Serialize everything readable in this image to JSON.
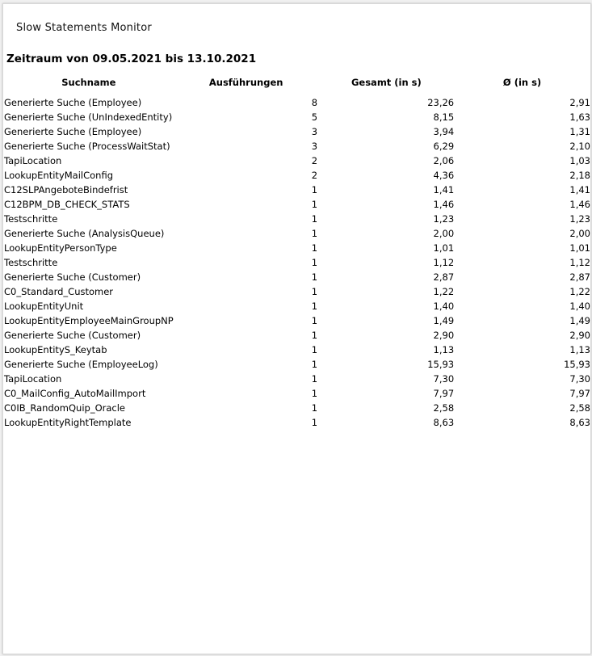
{
  "title": "Slow Statements Monitor",
  "heading": "Zeitraum von 09.05.2021 bis 13.10.2021",
  "table": {
    "columns": [
      "Suchname",
      "Ausführungen",
      "Gesamt (in s)",
      "Ø (in s)"
    ],
    "rows": [
      [
        "Generierte Suche (Employee)",
        "8",
        "23,26",
        "2,91"
      ],
      [
        "Generierte Suche (UnIndexedEntity)",
        "5",
        "8,15",
        "1,63"
      ],
      [
        "Generierte Suche (Employee)",
        "3",
        "3,94",
        "1,31"
      ],
      [
        "Generierte Suche (ProcessWaitStat)",
        "3",
        "6,29",
        "2,10"
      ],
      [
        "TapiLocation",
        "2",
        "2,06",
        "1,03"
      ],
      [
        "LookupEntityMailConfig",
        "2",
        "4,36",
        "2,18"
      ],
      [
        "C12SLPAngeboteBindefrist",
        "1",
        "1,41",
        "1,41"
      ],
      [
        "C12BPM_DB_CHECK_STATS",
        "1",
        "1,46",
        "1,46"
      ],
      [
        "Testschritte",
        "1",
        "1,23",
        "1,23"
      ],
      [
        "Generierte Suche (AnalysisQueue)",
        "1",
        "2,00",
        "2,00"
      ],
      [
        "LookupEntityPersonType",
        "1",
        "1,01",
        "1,01"
      ],
      [
        "Testschritte",
        "1",
        "1,12",
        "1,12"
      ],
      [
        "Generierte Suche (Customer)",
        "1",
        "2,87",
        "2,87"
      ],
      [
        "C0_Standard_Customer",
        "1",
        "1,22",
        "1,22"
      ],
      [
        "LookupEntityUnit",
        "1",
        "1,40",
        "1,40"
      ],
      [
        "LookupEntityEmployeeMainGroupNP",
        "1",
        "1,49",
        "1,49"
      ],
      [
        "Generierte Suche (Customer)",
        "1",
        "2,90",
        "2,90"
      ],
      [
        "LookupEntityS_Keytab",
        "1",
        "1,13",
        "1,13"
      ],
      [
        "Generierte Suche (EmployeeLog)",
        "1",
        "15,93",
        "15,93"
      ],
      [
        "TapiLocation",
        "1",
        "7,30",
        "7,30"
      ],
      [
        "C0_MailConfig_AutoMailImport",
        "1",
        "7,97",
        "7,97"
      ],
      [
        "C0IB_RandomQuip_Oracle",
        "1",
        "2,58",
        "2,58"
      ],
      [
        "LookupEntityRightTemplate",
        "1",
        "8,63",
        "8,63"
      ]
    ]
  }
}
